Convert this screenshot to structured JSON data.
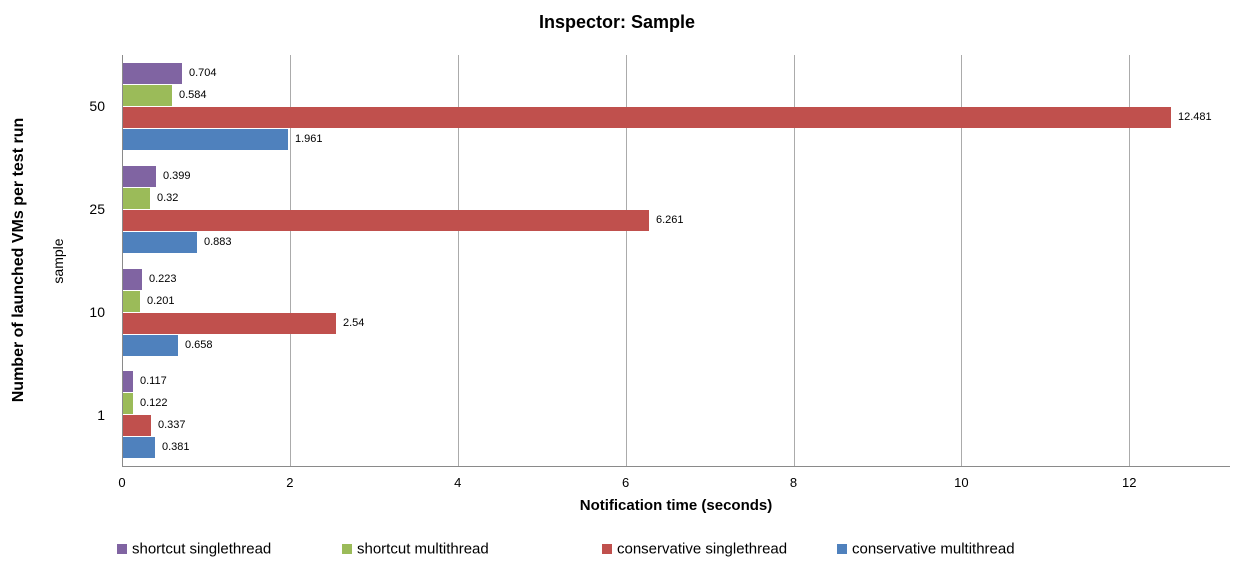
{
  "chart_data": {
    "type": "bar",
    "orientation": "horizontal",
    "title": "Inspector: Sample",
    "xlabel": "Notification time (seconds)",
    "ylabel": "Number of launched VMs per test run",
    "ylabel_secondary": "sample",
    "categories": [
      "50",
      "25",
      "10",
      "1"
    ],
    "series": [
      {
        "name": "shortcut singlethread",
        "color": "#8064A2",
        "values": [
          0.704,
          0.399,
          0.223,
          0.117
        ]
      },
      {
        "name": "shortcut multithread",
        "color": "#9BBB59",
        "values": [
          0.584,
          0.32,
          0.201,
          0.122
        ]
      },
      {
        "name": "conservative singlethread",
        "color": "#C0504D",
        "values": [
          12.481,
          6.261,
          2.54,
          0.337
        ]
      },
      {
        "name": "conservative multithread",
        "color": "#4F81BD",
        "values": [
          1.961,
          0.883,
          0.658,
          0.381
        ]
      }
    ],
    "xlim": [
      0,
      13.2
    ],
    "xticks": [
      0,
      2,
      4,
      6,
      8,
      10,
      12
    ],
    "grid": true,
    "data_labels": true,
    "legend_position": "bottom",
    "background_color": "#ffffff",
    "gridline_color": "#ababab",
    "axis_line_color": "#8a8a8a"
  }
}
